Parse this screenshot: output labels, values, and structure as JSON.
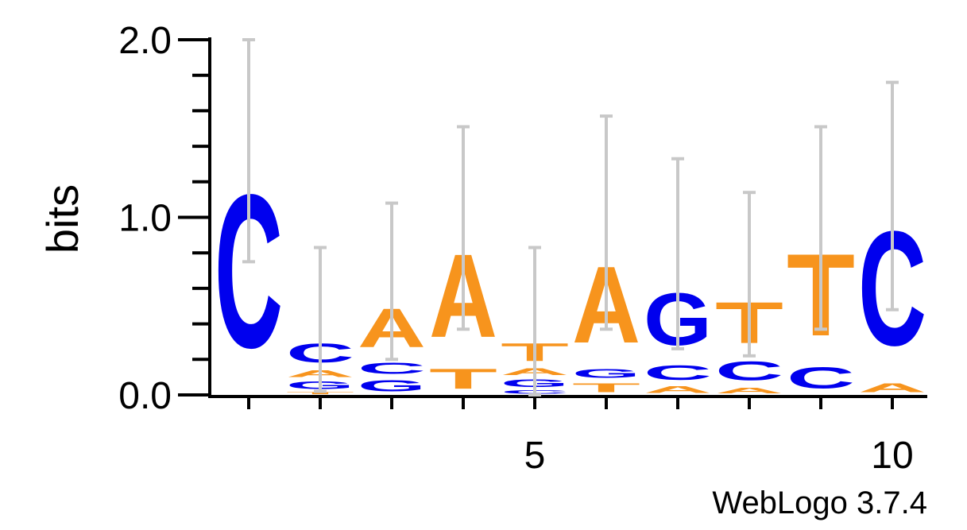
{
  "chart_data": {
    "type": "sequence_logo",
    "ylabel": "bits",
    "ylim": [
      0,
      2.0
    ],
    "y_ticks": [
      {
        "value": 0.0,
        "label": "0.0"
      },
      {
        "value": 1.0,
        "label": "1.0"
      },
      {
        "value": 2.0,
        "label": "2.0"
      }
    ],
    "y_minor_step": 0.2,
    "x_positions": [
      1,
      2,
      3,
      4,
      5,
      6,
      7,
      8,
      9,
      10
    ],
    "x_tick_labels": [
      {
        "position": 5,
        "label": "5"
      },
      {
        "position": 10,
        "label": "10"
      }
    ],
    "colors": {
      "A": "#f7941d",
      "T": "#f7941d",
      "C": "#0000ee",
      "G": "#0000ee",
      "axis": "#000000",
      "errorbar": "#c8c8c8"
    },
    "columns": [
      {
        "position": 1,
        "stack": [
          {
            "letter": "C",
            "bits": 1.38
          }
        ],
        "error": [
          0.75,
          2.0
        ]
      },
      {
        "position": 2,
        "stack": [
          {
            "letter": "T",
            "bits": 0.02
          },
          {
            "letter": "G",
            "bits": 0.07
          },
          {
            "letter": "A",
            "bits": 0.06
          },
          {
            "letter": "C",
            "bits": 0.17
          }
        ],
        "error": [
          0.02,
          0.83
        ]
      },
      {
        "position": 3,
        "stack": [
          {
            "letter": "G",
            "bits": 0.1
          },
          {
            "letter": "C",
            "bits": 0.1
          },
          {
            "letter": "A",
            "bits": 0.35
          }
        ],
        "error": [
          0.2,
          1.08
        ]
      },
      {
        "position": 4,
        "stack": [
          {
            "letter": "T",
            "bits": 0.18
          },
          {
            "letter": "A",
            "bits": 0.75
          }
        ],
        "error": [
          0.37,
          1.51
        ]
      },
      {
        "position": 5,
        "stack": [
          {
            "letter": "C",
            "bits": 0.03
          },
          {
            "letter": "G",
            "bits": 0.07
          },
          {
            "letter": "A",
            "bits": 0.06
          },
          {
            "letter": "T",
            "bits": 0.16
          }
        ],
        "error": [
          0.0,
          0.83
        ]
      },
      {
        "position": 6,
        "stack": [
          {
            "letter": "T",
            "bits": 0.08
          },
          {
            "letter": "G",
            "bits": 0.08
          },
          {
            "letter": "A",
            "bits": 0.69
          }
        ],
        "error": [
          0.37,
          1.57
        ]
      },
      {
        "position": 7,
        "stack": [
          {
            "letter": "A",
            "bits": 0.06
          },
          {
            "letter": "C",
            "bits": 0.13
          },
          {
            "letter": "G",
            "bits": 0.47
          }
        ],
        "error": [
          0.26,
          1.33
        ]
      },
      {
        "position": 8,
        "stack": [
          {
            "letter": "A",
            "bits": 0.05
          },
          {
            "letter": "C",
            "bits": 0.17
          },
          {
            "letter": "T",
            "bits": 0.37
          }
        ],
        "error": [
          0.22,
          1.14
        ]
      },
      {
        "position": 9,
        "stack": [
          {
            "letter": "C",
            "bits": 0.19
          },
          {
            "letter": "T",
            "bits": 0.74
          }
        ],
        "error": [
          0.37,
          1.51
        ]
      },
      {
        "position": 10,
        "stack": [
          {
            "letter": "A",
            "bits": 0.08
          },
          {
            "letter": "C",
            "bits": 1.03
          }
        ],
        "error": [
          0.48,
          1.76
        ]
      }
    ]
  },
  "footer": {
    "text": "WebLogo 3.7.4"
  }
}
